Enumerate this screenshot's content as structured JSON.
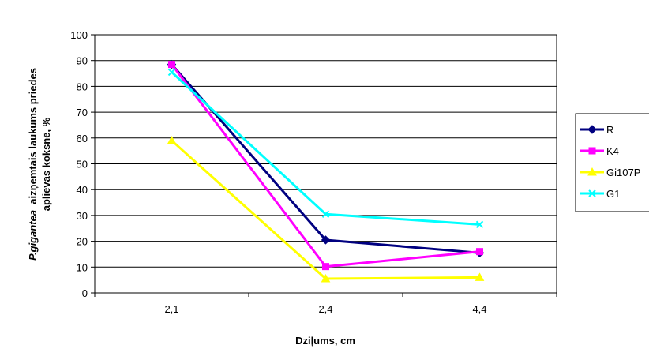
{
  "chart_data": {
    "type": "line",
    "categories": [
      "2,1",
      "2,4",
      "4,4"
    ],
    "series": [
      {
        "name": "R",
        "values": [
          88.5,
          20.5,
          15.5
        ],
        "color": "#000080",
        "marker": "diamond"
      },
      {
        "name": "K4",
        "values": [
          88.5,
          10.2,
          16.0
        ],
        "color": "#FF00FF",
        "marker": "square"
      },
      {
        "name": "Gi107P",
        "values": [
          59.0,
          5.5,
          6.0
        ],
        "color": "#FFFF00",
        "marker": "triangle"
      },
      {
        "name": "G1",
        "values": [
          85.5,
          30.5,
          26.5
        ],
        "color": "#00FFFF",
        "marker": "x"
      }
    ],
    "xlabel": "Dziļums, cm",
    "ylabel_part1": "P.gigantea",
    "ylabel_part2": "  aizņemtais laukums priedes",
    "ylabel_line2": "aplievas koksnē, %",
    "ylim": [
      0,
      100
    ],
    "yticks": [
      0,
      10,
      20,
      30,
      40,
      50,
      60,
      70,
      80,
      90,
      100
    ],
    "grid": true,
    "legend_position": "right"
  }
}
